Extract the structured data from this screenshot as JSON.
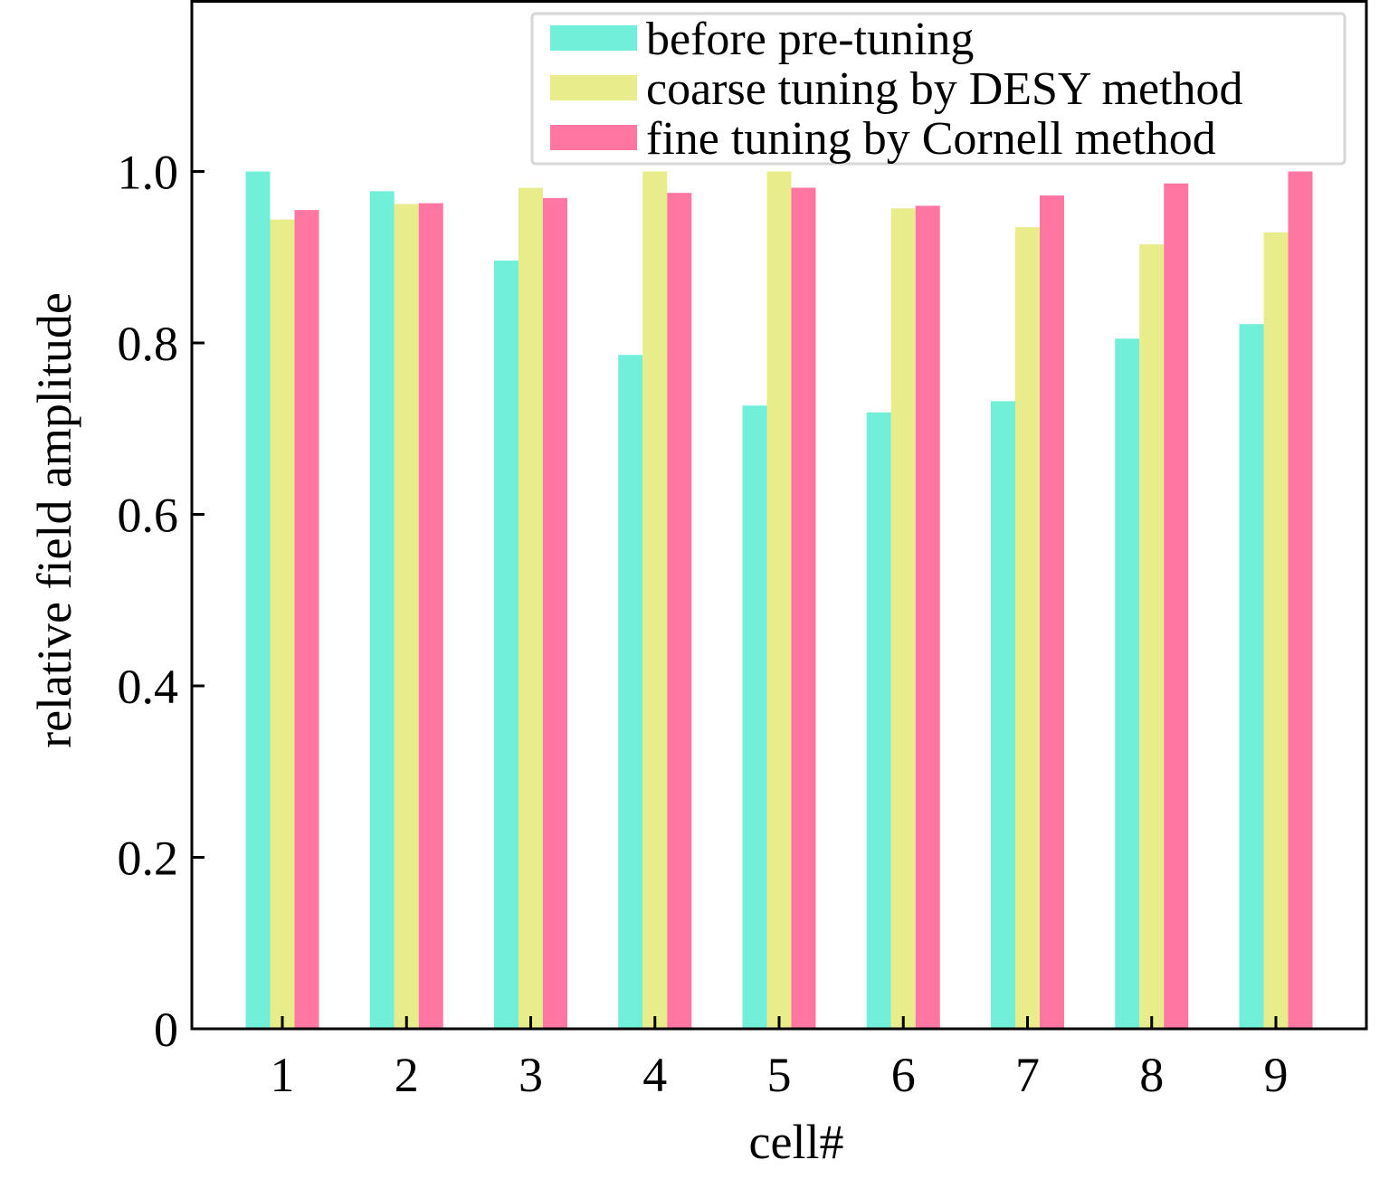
{
  "chart_data": {
    "type": "bar",
    "title": "",
    "xlabel": "cell#",
    "ylabel": "relative field amplitude",
    "categories": [
      "1",
      "2",
      "3",
      "4",
      "5",
      "6",
      "7",
      "8",
      "9"
    ],
    "ylim": [
      0,
      1.2
    ],
    "yticks": [
      0,
      0.2,
      0.4,
      0.6,
      0.8,
      1.0
    ],
    "ytick_labels": [
      "0",
      "0.2",
      "0.4",
      "0.6",
      "0.8",
      "1.0"
    ],
    "grid": false,
    "legend_position": "top-right",
    "series": [
      {
        "name": "before pre-tuning",
        "color": "#72EFD9",
        "values": [
          1.0,
          0.977,
          0.896,
          0.786,
          0.727,
          0.719,
          0.732,
          0.805,
          0.822
        ]
      },
      {
        "name": "coarse tuning by DESY method",
        "color": "#E8EC8A",
        "values": [
          0.944,
          0.962,
          0.981,
          1.0,
          1.0,
          0.957,
          0.935,
          0.915,
          0.929
        ]
      },
      {
        "name": "fine tuning by Cornell method",
        "color": "#FF76A2",
        "values": [
          0.955,
          0.963,
          0.969,
          0.975,
          0.981,
          0.96,
          0.972,
          0.986,
          1.0
        ]
      }
    ]
  }
}
